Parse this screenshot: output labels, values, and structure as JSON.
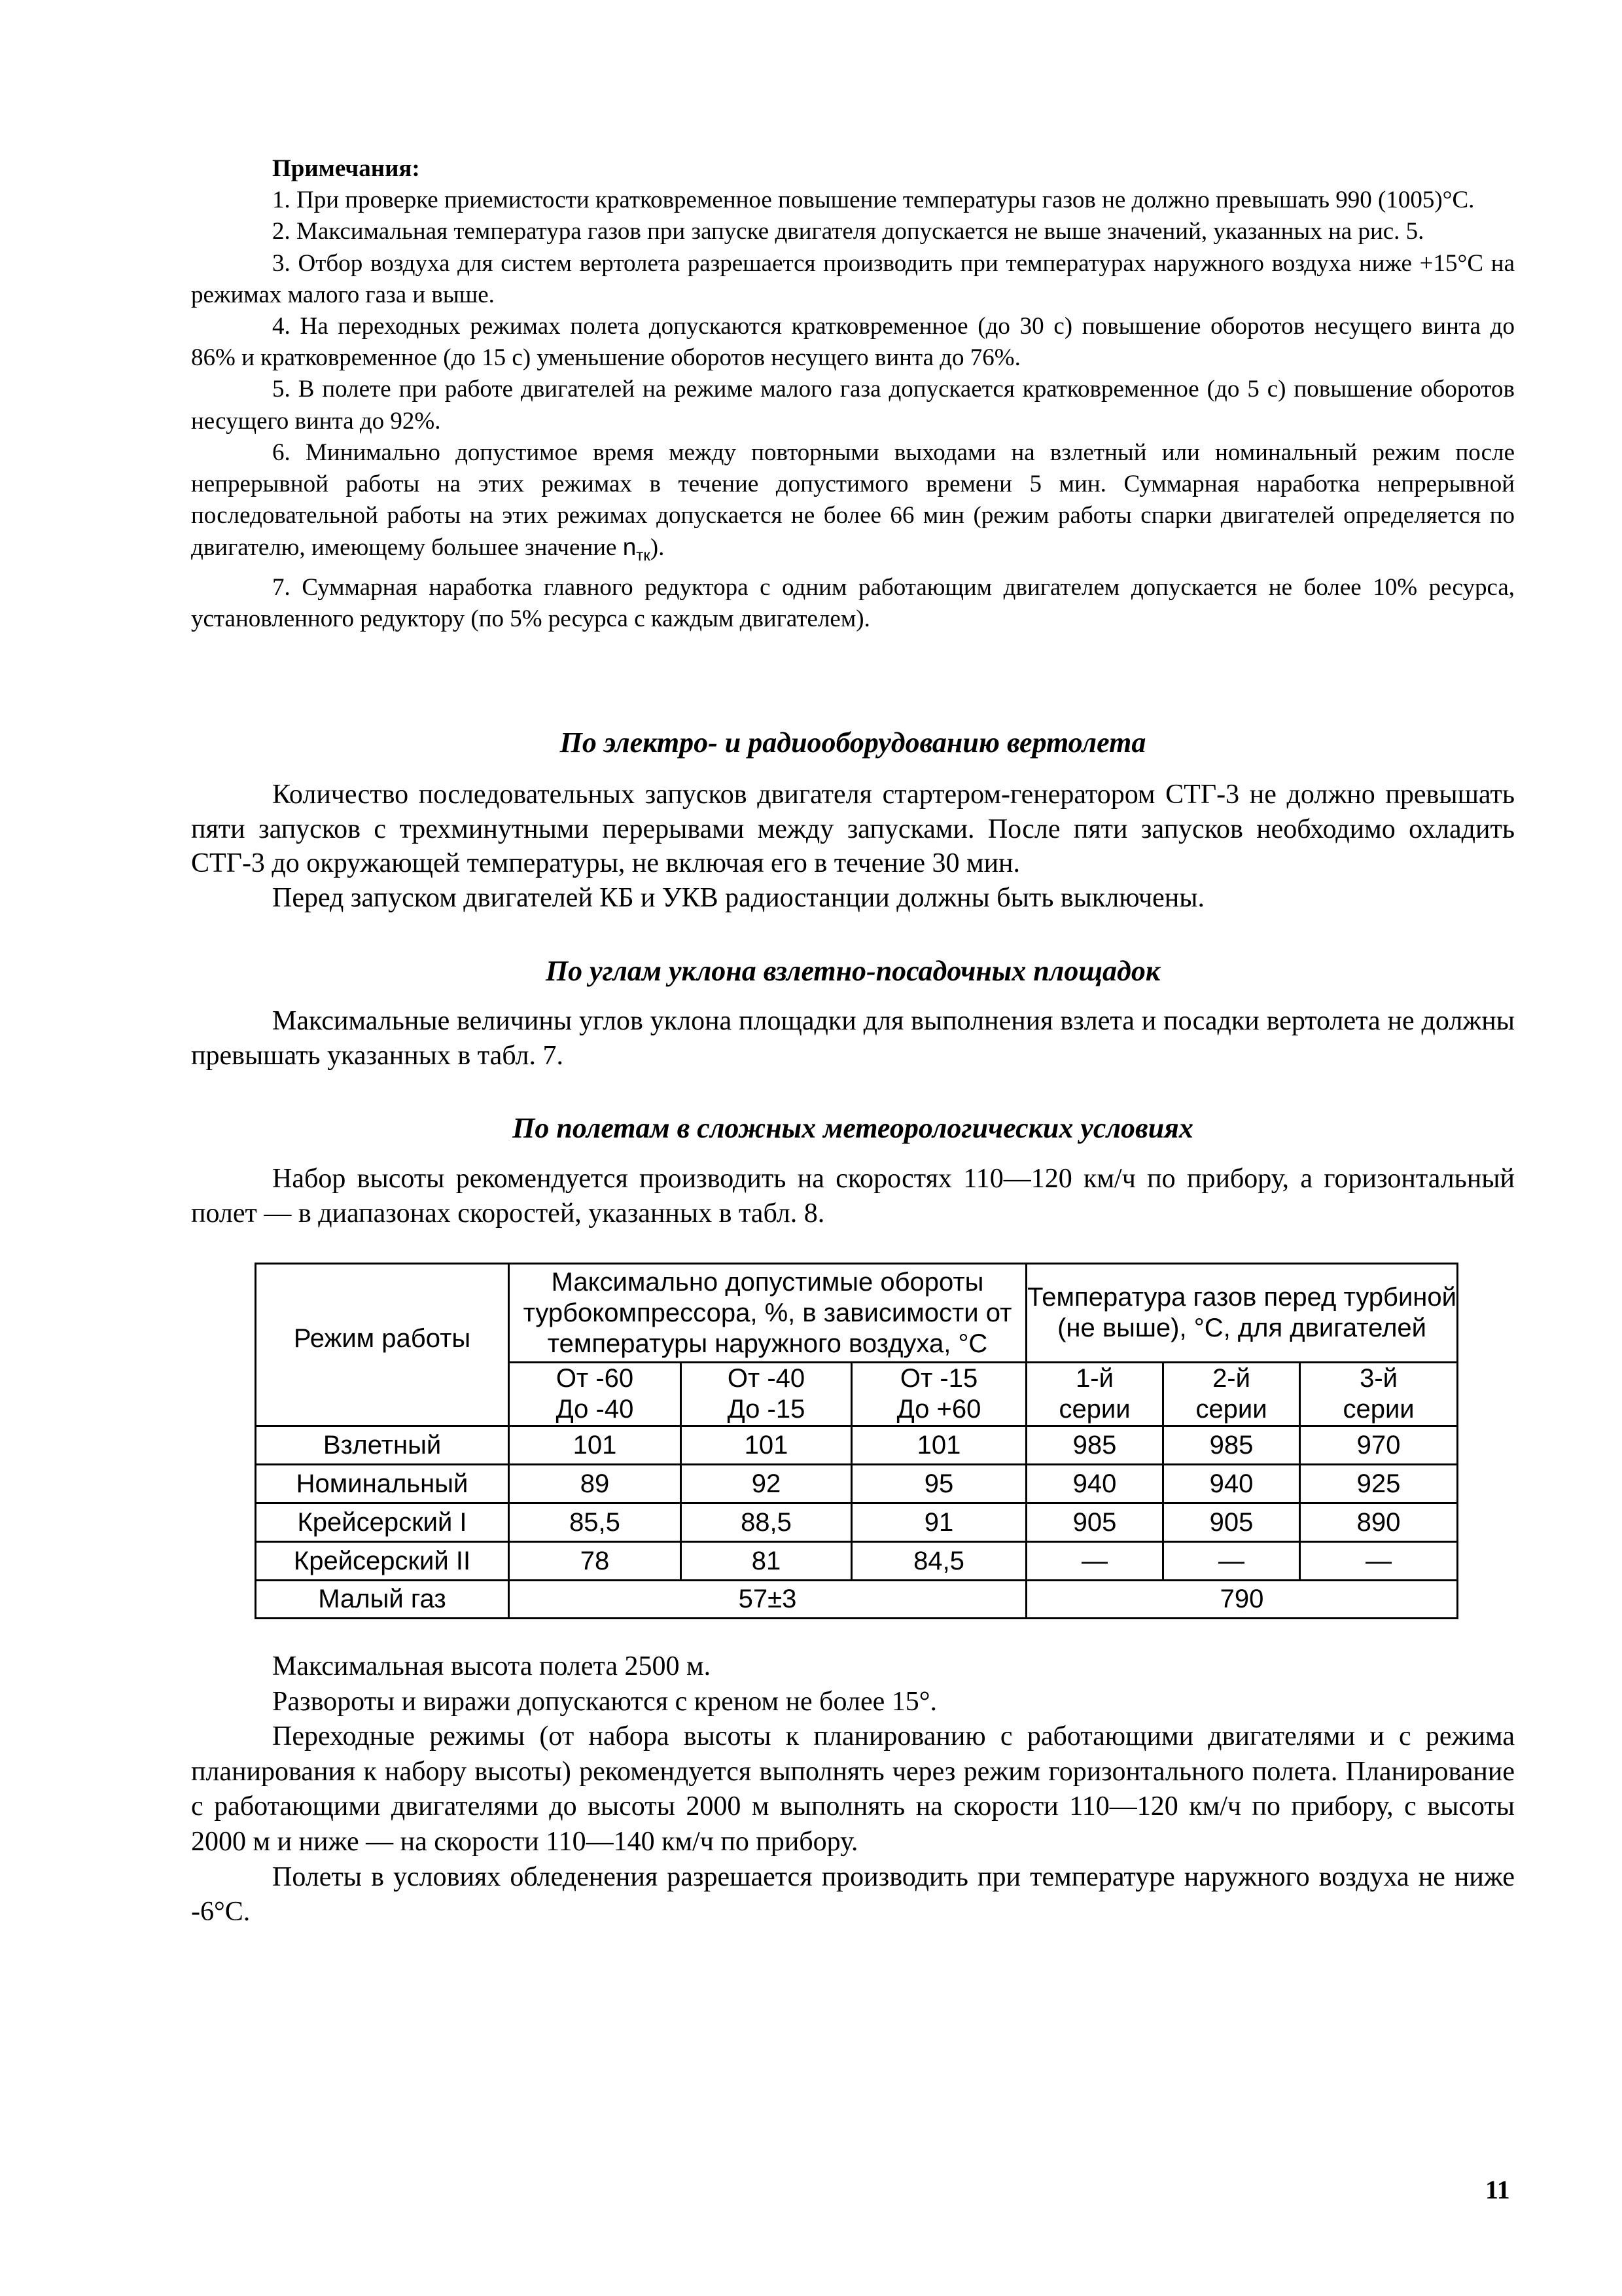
{
  "notes": {
    "title": "Примечания:",
    "items": [
      "1. При проверке приемистости кратковременное повышение температуры газов не должно превышать 990 (1005)°С.",
      "2. Максимальная температура газов при запуске двигателя допускается не выше значений, указанных на рис. 5.",
      "3. Отбор воздуха для систем вертолета разрешается производить при температурах наружного воздуха ниже +15°С на режимах малого газа и выше.",
      "4. На переходных режимах полета допускаются кратковременное (до 30 с) повышение оборотов несущего винта до 86% и кратковременное (до 15 с) уменьшение оборотов несущего винта до 76%.",
      "5. В полете при работе двигателей на режиме малого газа допускается кратковременное (до 5 с) повышение оборотов несущего винта до 92%.",
      "6. Минимально допустимое время между повторными выходами на взлетный или номинальный режим после непрерывной работы на этих режимах в течение допустимого времени 5 мин. Суммарная наработка непрерывной последовательной работы на этих режимах допускается не более 66 мин (режим работы спарки двигателей определяется по двигателю, имеющему большее значение",
      "7. Суммарная наработка главного редуктора с одним работающим двигателем допускается не более 10% ресурса, установленного редуктору (по 5% ресурса с каждым двигателем)."
    ],
    "item6_symbol": "n",
    "item6_subscript": "тк",
    "item6_end": ")."
  },
  "sections": [
    {
      "heading": "По электро- и радиооборудованию вертолета",
      "paragraphs": [
        "Количество последовательных запусков двигателя стартером-генератором СТГ-3 не должно превышать пяти запусков с трехминутными перерывами между запусками. После пяти запусков необходимо охладить СТГ-3 до окружающей температуры, не включая его в течение 30 мин.",
        "Перед запуском двигателей КБ и УКВ радиостанции должны быть выключены."
      ]
    },
    {
      "heading": "По углам уклона взлетно-посадочных площадок",
      "paragraphs": [
        "Максимальные величины углов уклона площадки для выполнения взлета и посадки вертолета не должны превышать указанных в табл. 7."
      ]
    },
    {
      "heading": "По полетам в сложных метеорологических условиях",
      "paragraphs": [
        "Набор высоты рекомендуется производить на скоростях 110—120 км/ч по прибору, а горизонтальный полет — в диапазонах скоростей, указанных в табл. 8."
      ]
    }
  ],
  "table": {
    "mode_header": "Режим работы",
    "rpm_header": "Максимально допустимые обороты турбокомпрессора, %, в зависимости от температуры наружного воздуха, °С",
    "temp_header": "Температура газов перед турбиной (не выше), °С, для двигателей",
    "rpm_subheaders": [
      [
        "От -60",
        "До -40"
      ],
      [
        "От -40",
        "До -15"
      ],
      [
        "От -15",
        "До +60"
      ]
    ],
    "temp_subheaders": [
      [
        "1-й",
        "серии"
      ],
      [
        "2-й",
        "серии"
      ],
      [
        "3-й",
        "серии"
      ]
    ],
    "rows": [
      {
        "mode": "Взлетный",
        "values": [
          "101",
          "101",
          "101",
          "985",
          "985",
          "970"
        ]
      },
      {
        "mode": "Номинальный",
        "values": [
          "89",
          "92",
          "95",
          "940",
          "940",
          "925"
        ]
      },
      {
        "mode": "Крейсерский I",
        "values": [
          "85,5",
          "88,5",
          "91",
          "905",
          "905",
          "890"
        ]
      },
      {
        "mode": "Крейсерский II",
        "values": [
          "78",
          "81",
          "84,5",
          "—",
          "—",
          "—"
        ]
      }
    ],
    "idle": {
      "mode": "Малый газ",
      "rpm": "57±3",
      "temp": "790"
    }
  },
  "after_table": [
    "Максимальная высота полета 2500 м.",
    "Развороты и виражи допускаются с креном не более 15°.",
    "Переходные режимы (от набора высоты к планированию с работающими двигателями и с режима планирования к набору высоты) рекомендуется выполнять через режим горизонтального полета. Планирование с работающими двигателями до высоты 2000 м выполнять на скорости 110—120 км/ч по прибору, с высоты 2000 м и ниже — на скорости 110—140 км/ч по прибору.",
    "Полеты в условиях обледенения разрешается производить при температуре наружного воздуха не ниже -6°С."
  ],
  "page_number": "11"
}
